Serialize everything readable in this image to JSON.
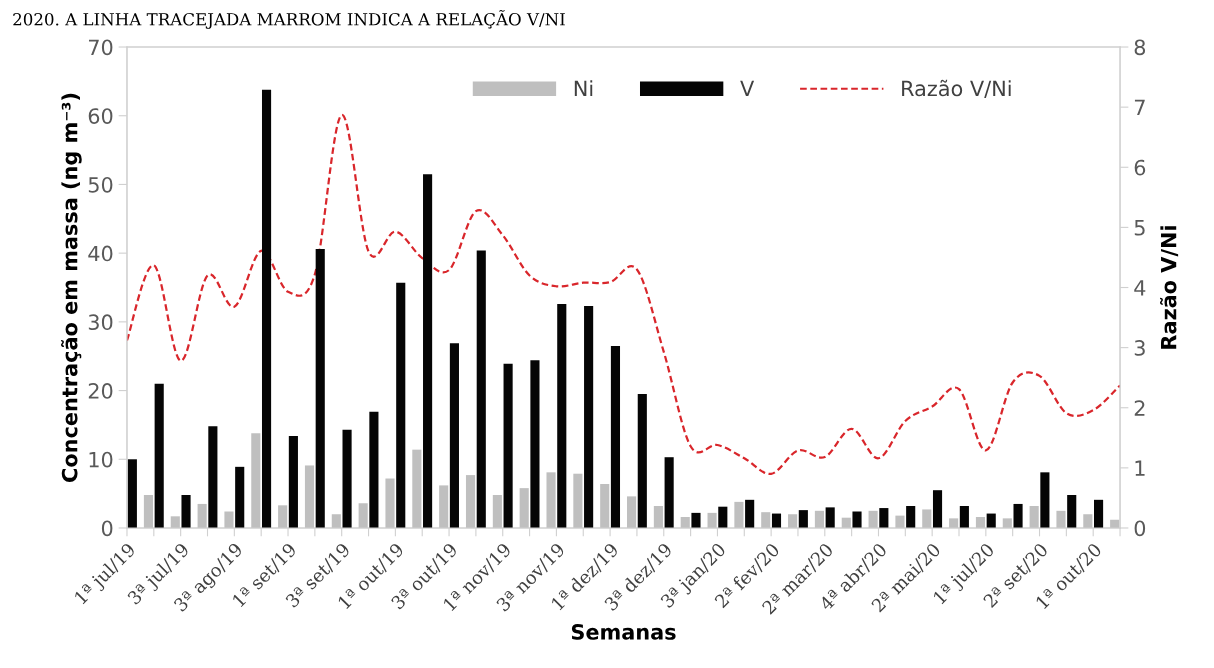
{
  "chart_data": {
    "type": "bar",
    "annotations": [
      "2020. A LINHA TRACEJADA MARROM INDICA A RELAÇÃO V/NI"
    ],
    "xlabel": "Semanas",
    "ylabel": "Concentração em massa (ng m⁻³)",
    "y2label": "Razão V/Ni",
    "categories": [
      "1ª jul/19",
      null,
      "3ª jul/19",
      null,
      "3ª ago/19",
      null,
      "1ª set/19",
      null,
      "3ª set/19",
      null,
      "1ª out/19",
      null,
      "3ª out/19",
      null,
      "1ª nov/19",
      null,
      "3ª nov/19",
      null,
      "1ª dez/19",
      null,
      "3ª dez/19",
      null,
      "3ª jan/20",
      null,
      "2ª fev/20",
      null,
      "2ª mar/20",
      null,
      "4ª abr/20",
      null,
      "2ª mai/20",
      null,
      "1ª jul/20",
      null,
      "2ª set/20",
      null,
      "1ª out/20",
      null
    ],
    "series": [
      {
        "name": "Ni",
        "color": "#bfbfbf",
        "values": [
          null,
          4.8,
          1.7,
          3.5,
          2.4,
          13.8,
          3.3,
          9.1,
          2.0,
          3.6,
          7.2,
          11.4,
          6.2,
          7.7,
          4.8,
          5.8,
          8.1,
          7.9,
          6.4,
          4.6,
          3.2,
          1.6,
          2.2,
          3.8,
          2.3,
          2.0,
          2.5,
          1.5,
          2.5,
          1.8,
          2.7,
          1.4,
          1.6,
          1.4,
          3.2,
          2.5,
          2.0,
          1.2
        ]
      },
      {
        "name": "V",
        "color": "#050505",
        "values": [
          10.0,
          21.0,
          4.8,
          14.8,
          8.9,
          63.8,
          13.4,
          40.6,
          14.3,
          16.9,
          35.7,
          51.5,
          26.9,
          40.4,
          23.9,
          24.4,
          32.6,
          32.3,
          26.5,
          19.5,
          10.3,
          2.2,
          3.1,
          4.1,
          2.1,
          2.6,
          3.0,
          2.4,
          2.9,
          3.2,
          5.5,
          3.2,
          2.1,
          3.5,
          8.1,
          4.8,
          4.1,
          null
        ]
      },
      {
        "name": "Razão V/Ni",
        "type": "line",
        "axis": "y2",
        "color": "#d9262b",
        "line_style": "dashed",
        "marker": "none",
        "values": [
          3.12,
          4.37,
          2.78,
          4.2,
          3.68,
          4.61,
          3.93,
          4.22,
          6.87,
          4.6,
          4.93,
          4.49,
          4.29,
          5.27,
          4.87,
          4.2,
          4.02,
          4.08,
          4.09,
          4.3,
          2.93,
          1.36,
          1.38,
          1.16,
          0.9,
          1.29,
          1.18,
          1.65,
          1.16,
          1.78,
          2.02,
          2.31,
          1.29,
          2.42,
          2.53,
          1.91,
          1.96,
          2.37
        ]
      }
    ],
    "ylim": [
      0,
      70
    ],
    "yticks": [
      0,
      10,
      20,
      30,
      40,
      50,
      60,
      70
    ],
    "y2lim": [
      0,
      8
    ],
    "y2ticks": [
      0,
      1,
      2,
      3,
      4,
      5,
      6,
      7,
      8
    ],
    "grid": false,
    "legend": "top"
  }
}
